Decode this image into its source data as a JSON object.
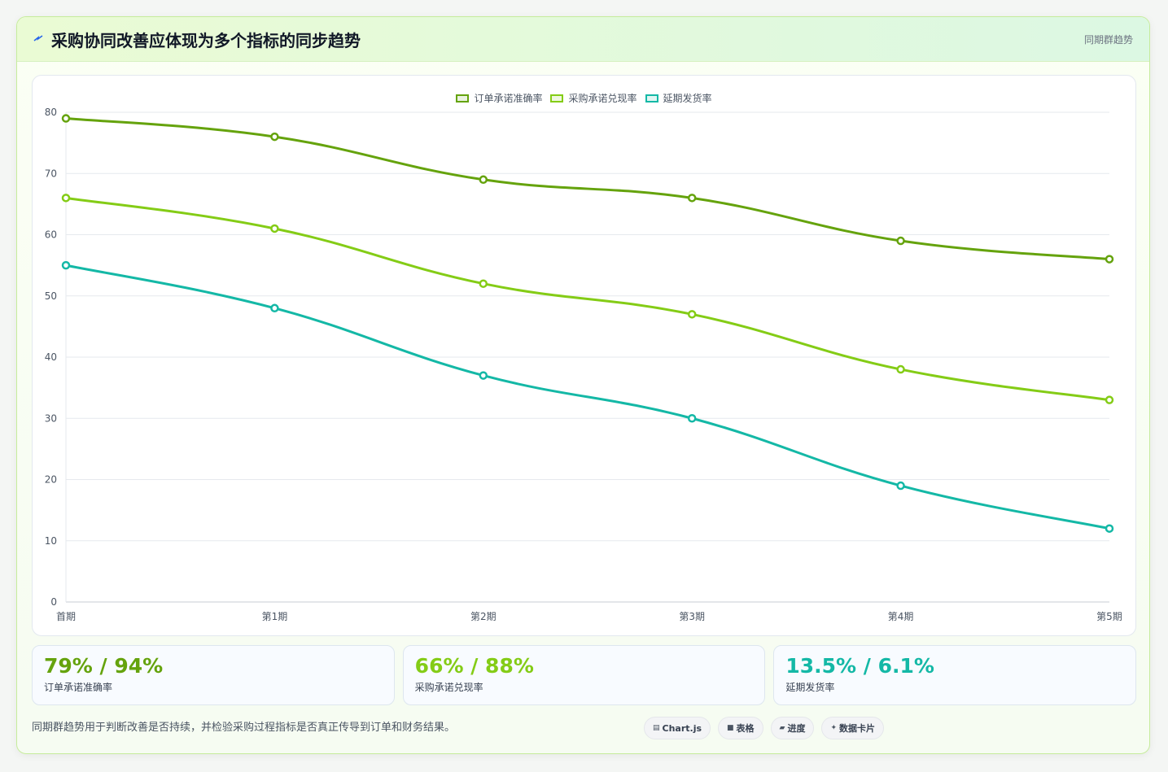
{
  "header": {
    "icon": "zap-icon",
    "title": "采购协同改善应体现为多个指标的同步趋势",
    "tag": "同期群趋势"
  },
  "chart_data": {
    "type": "line",
    "categories": [
      "首期",
      "第1期",
      "第2期",
      "第3期",
      "第4期",
      "第5期"
    ],
    "series": [
      {
        "name": "订单承诺准确率",
        "color": "#65a30d",
        "values": [
          79,
          76,
          69,
          66,
          59,
          56
        ]
      },
      {
        "name": "采购承诺兑现率",
        "color": "#84cc16",
        "values": [
          66,
          61,
          52,
          47,
          38,
          33
        ]
      },
      {
        "name": "延期发货率",
        "color": "#14b8a6",
        "values": [
          55,
          48,
          37,
          30,
          19,
          12
        ]
      }
    ],
    "yticks": [
      "0",
      "10",
      "20",
      "30",
      "40",
      "50",
      "60",
      "70",
      "80"
    ],
    "ylim": [
      0,
      80
    ],
    "grid": true,
    "legend": "top-center"
  },
  "stats": [
    {
      "value": "79% / 94%",
      "label": "订单承诺准确率",
      "color": "#65a30d"
    },
    {
      "value": "66% / 88%",
      "label": "采购承诺兑现率",
      "color": "#84cc16"
    },
    {
      "value": "13.5% / 6.1%",
      "label": "延期发货率",
      "color": "#14b8a6"
    }
  ],
  "footer": {
    "note": "同期群趋势用于判断改善是否持续，并检验采购过程指标是否真正传导到订单和财务结果。",
    "chips": [
      {
        "icon": "chart-icon",
        "glyph": "▤",
        "label": "Chart.js"
      },
      {
        "icon": "table-icon",
        "glyph": "■",
        "label": "表格"
      },
      {
        "icon": "progress-icon",
        "glyph": "▰",
        "label": "进度"
      },
      {
        "icon": "sparkle-icon",
        "glyph": "✦",
        "label": "数据卡片"
      }
    ]
  }
}
